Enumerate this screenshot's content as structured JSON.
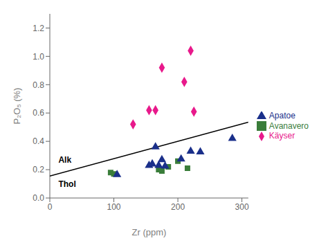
{
  "chart_data": {
    "type": "scatter",
    "title": "",
    "xlabel": "Zr (ppm)",
    "ylabel": "P₂O₅ (%)",
    "xlim": [
      0,
      310
    ],
    "ylim": [
      0,
      1.3
    ],
    "xticks": [
      0,
      100,
      200,
      300
    ],
    "yticks": [
      {
        "value": 0,
        "label": "0.0"
      },
      0.2,
      0.4,
      0.6,
      0.8,
      {
        "value": 1.0,
        "label": "1.0"
      },
      1.2
    ],
    "grid": false,
    "series": [
      {
        "type": "line",
        "line_style": "solid",
        "color": "#000000",
        "x": [
          0,
          310
        ],
        "values": [
          0.155,
          0.535
        ]
      },
      {
        "name": "Käyser",
        "color": "#e8198b",
        "marker": "diamond",
        "x": [
          130,
          155,
          165,
          175,
          210,
          220,
          225
        ],
        "values": [
          0.52,
          0.62,
          0.62,
          0.92,
          0.82,
          1.04,
          0.61
        ]
      },
      {
        "name": "Avanavero",
        "color": "#3a7d3a",
        "marker": "square",
        "x": [
          95,
          100,
          170,
          175,
          185,
          200,
          215
        ],
        "values": [
          0.18,
          0.17,
          0.2,
          0.19,
          0.22,
          0.26,
          0.21
        ]
      },
      {
        "name": "Apatoe",
        "color": "#1a2f8a",
        "marker": "triangle",
        "x": [
          105,
          155,
          160,
          165,
          170,
          175,
          180,
          205,
          220,
          235,
          285
        ],
        "values": [
          0.165,
          0.23,
          0.24,
          0.36,
          0.23,
          0.27,
          0.225,
          0.275,
          0.33,
          0.325,
          0.42
        ]
      }
    ],
    "annotations": [
      {
        "text": "Alk",
        "x": 8,
        "y": 0.27
      },
      {
        "text": "Thol",
        "x": 8,
        "y": 0.1
      }
    ]
  }
}
